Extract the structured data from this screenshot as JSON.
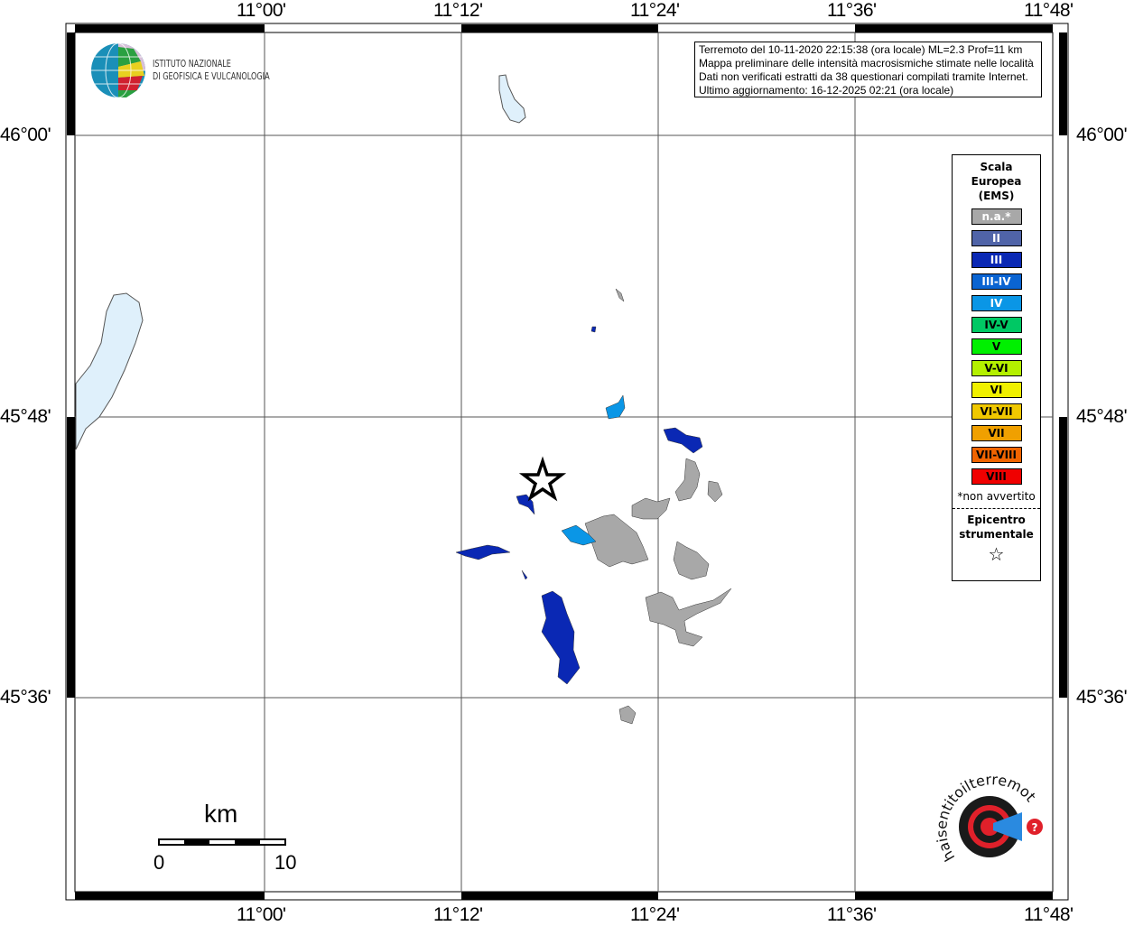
{
  "map": {
    "lon_labels": [
      "11°00'",
      "11°12'",
      "11°24'",
      "11°36'",
      "11°48'"
    ],
    "lat_labels": [
      "46°00'",
      "45°48'",
      "45°36'"
    ],
    "lake_color": "#dff0fb"
  },
  "institute_logo": {
    "line1": "ISTITUTO NAZIONALE",
    "line2": "DI GEOFISICA E VULCANOLOGIA"
  },
  "info": {
    "line1": "Terremoto del 10-11-2020 22:15:38 (ora locale) ML=2.3 Prof=11 km",
    "line2": "Mappa preliminare delle intensità macrosismiche stimate nelle località",
    "line3": "Dati non verificati estratti da 38 questionari compilati tramite Internet.",
    "line4": "Ultimo aggiornamento: 16-12-2025 02:21 (ora locale)"
  },
  "legend": {
    "title": [
      "Scala",
      "Europea",
      "(EMS)"
    ],
    "classes": [
      {
        "label": "n.a.*",
        "color": "#a8a8a8",
        "text": "#ffffff"
      },
      {
        "label": "II",
        "color": "#5064a8",
        "text": "#ffffff"
      },
      {
        "label": "III",
        "color": "#0a28b4",
        "text": "#ffffff"
      },
      {
        "label": "III-IV",
        "color": "#0a64d2",
        "text": "#ffffff"
      },
      {
        "label": "IV",
        "color": "#0a96e6",
        "text": "#ffffff"
      },
      {
        "label": "IV-V",
        "color": "#00c864",
        "text": "#000000"
      },
      {
        "label": "V",
        "color": "#00f000",
        "text": "#000000"
      },
      {
        "label": "V-VI",
        "color": "#b4f000",
        "text": "#000000"
      },
      {
        "label": "VI",
        "color": "#f0f000",
        "text": "#000000"
      },
      {
        "label": "VI-VII",
        "color": "#f0c800",
        "text": "#000000"
      },
      {
        "label": "VII",
        "color": "#f0a000",
        "text": "#000000"
      },
      {
        "label": "VII-VIII",
        "color": "#f06400",
        "text": "#000000"
      },
      {
        "label": "VIII",
        "color": "#f00000",
        "text": "#000000"
      }
    ],
    "note": "*non avvertito",
    "epicenter": [
      "Epicentro",
      "strumentale"
    ]
  },
  "scalebar": {
    "unit": "km",
    "min": "0",
    "max": "10"
  },
  "haisentito_logo": {
    "text": "www.haisentitoilterremoto.it"
  }
}
